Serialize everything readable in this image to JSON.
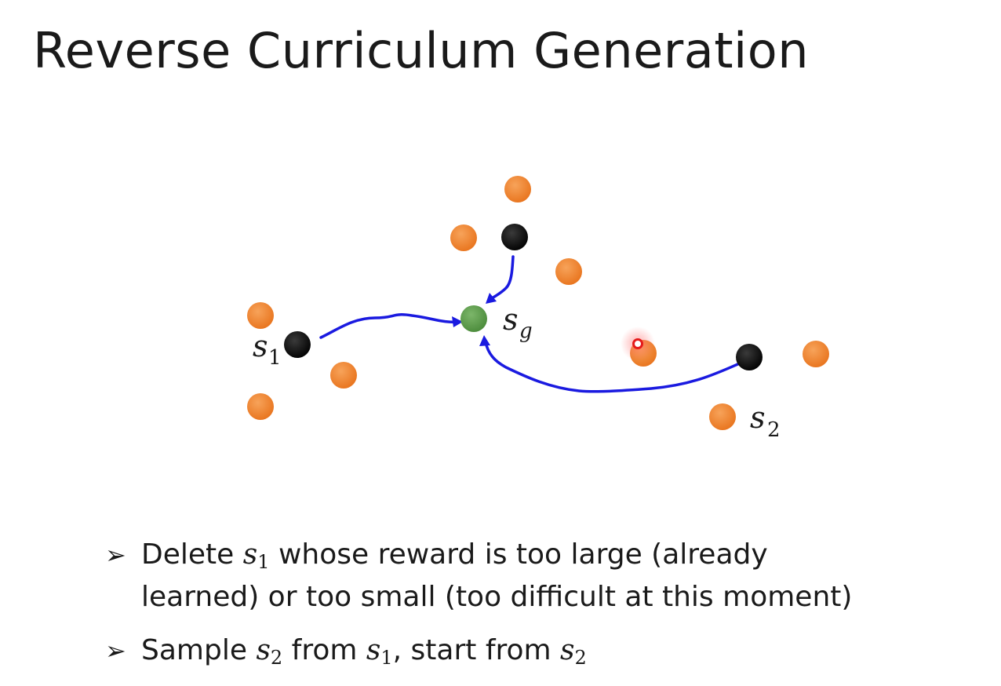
{
  "slide": {
    "title": "Reverse Curriculum Generation"
  },
  "diagram": {
    "labels": {
      "s1": {
        "main": "s",
        "sub": "1"
      },
      "sg": {
        "main": "s",
        "sub": "g"
      },
      "s2": {
        "main": "s",
        "sub": "2"
      }
    },
    "colors": {
      "orange_state": "#f0822a",
      "start_state": "#0d0d0d",
      "goal_state": "#5a9a48",
      "arrow": "#1a1ae0",
      "pointer": "#e41a1a"
    }
  },
  "bullets": [
    {
      "marker": "➢",
      "parts": [
        {
          "t": "Delete "
        },
        {
          "var": "s",
          "sub": "1"
        },
        {
          "t": " whose reward is too large (already"
        },
        {
          "br": true
        },
        {
          "t": "learned) or too small (too difficult at this moment)"
        }
      ]
    },
    {
      "marker": "➢",
      "parts": [
        {
          "t": "Sample "
        },
        {
          "var": "s",
          "sub": "2"
        },
        {
          "t": " from "
        },
        {
          "var": "s",
          "sub": "1"
        },
        {
          "t": ", start from "
        },
        {
          "var": "s",
          "sub": "2"
        }
      ]
    }
  ]
}
